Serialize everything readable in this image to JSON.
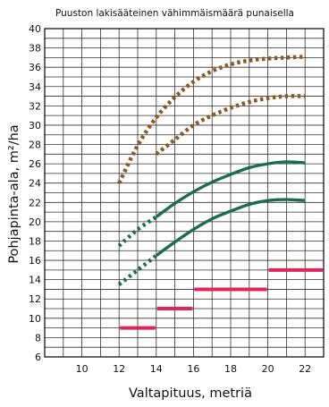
{
  "chart_data": {
    "type": "line",
    "title": "Puuston lakisääteinen vähimmäismäärä punaisella",
    "xlabel": "Valtapituus, metriä",
    "ylabel": "Pohjapinta-ala, m²/ha",
    "xlim": [
      8,
      23
    ],
    "ylim": [
      6,
      40
    ],
    "xticks": [
      10,
      12,
      14,
      16,
      18,
      20,
      22
    ],
    "yticks": [
      6,
      8,
      10,
      12,
      14,
      16,
      18,
      20,
      22,
      24,
      26,
      28,
      30,
      32,
      34,
      36,
      38,
      40
    ],
    "grid": true,
    "series": [
      {
        "style": "dotted",
        "color": "#8B5A2B",
        "x": [
          12,
          13,
          14,
          15,
          16,
          17,
          18,
          19,
          20,
          21,
          22
        ],
        "y": [
          24.0,
          27.9,
          30.8,
          32.9,
          34.5,
          35.6,
          36.3,
          36.7,
          36.9,
          37.0,
          37.1
        ]
      },
      {
        "style": "dotted",
        "color": "#8B5A2B",
        "x": [
          14,
          15,
          16,
          17,
          18,
          19,
          20,
          21,
          22
        ],
        "y": [
          27.0,
          28.5,
          30.0,
          31.0,
          31.8,
          32.4,
          32.8,
          33.0,
          33.0
        ]
      },
      {
        "style": "dotted",
        "color": "#1F6B4F",
        "x": [
          12,
          13,
          14
        ],
        "y": [
          17.5,
          19.2,
          20.5
        ]
      },
      {
        "style": "solid",
        "color": "#1F6B4F",
        "x": [
          14,
          15,
          16,
          17,
          18,
          19,
          20,
          21,
          22
        ],
        "y": [
          20.5,
          21.9,
          23.1,
          24.1,
          24.9,
          25.6,
          26.0,
          26.2,
          26.1
        ]
      },
      {
        "style": "dotted",
        "color": "#1F6B4F",
        "x": [
          12,
          13,
          14
        ],
        "y": [
          13.5,
          15.0,
          16.5
        ]
      },
      {
        "style": "solid",
        "color": "#1F6B4F",
        "x": [
          14,
          15,
          16,
          17,
          18,
          19,
          20,
          21,
          22
        ],
        "y": [
          16.5,
          17.9,
          19.2,
          20.3,
          21.1,
          21.8,
          22.2,
          22.3,
          22.2
        ]
      }
    ],
    "minimum_levels": {
      "color": "#E0245E",
      "segments": [
        {
          "x": [
            12,
            14
          ],
          "y": 9
        },
        {
          "x": [
            14,
            16
          ],
          "y": 11
        },
        {
          "x": [
            16,
            20
          ],
          "y": 13
        },
        {
          "x": [
            20,
            23
          ],
          "y": 15
        }
      ]
    }
  }
}
